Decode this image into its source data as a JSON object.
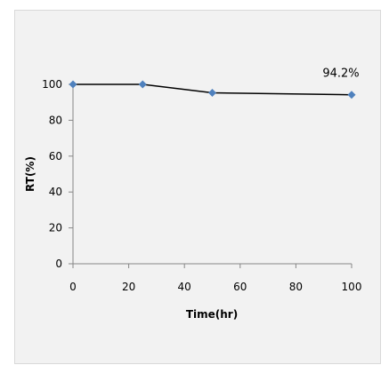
{
  "chart_data": {
    "type": "line",
    "title": "",
    "xlabel": "Time(hr)",
    "ylabel": "RT(%)",
    "xlim": [
      0,
      100
    ],
    "ylim": [
      0,
      100
    ],
    "x_ticks": [
      0,
      20,
      40,
      60,
      80,
      100
    ],
    "y_ticks": [
      0,
      20,
      40,
      60,
      80,
      100
    ],
    "grid": false,
    "legend": "none",
    "series": [
      {
        "x": [
          0,
          25,
          50,
          100
        ],
        "values": [
          100,
          100,
          95.3,
          94.2
        ],
        "color": "#4f81bd",
        "line_color": "#000000"
      }
    ],
    "annotations": [
      {
        "text": "94.2%",
        "x": 100,
        "y": 94.2
      }
    ]
  }
}
